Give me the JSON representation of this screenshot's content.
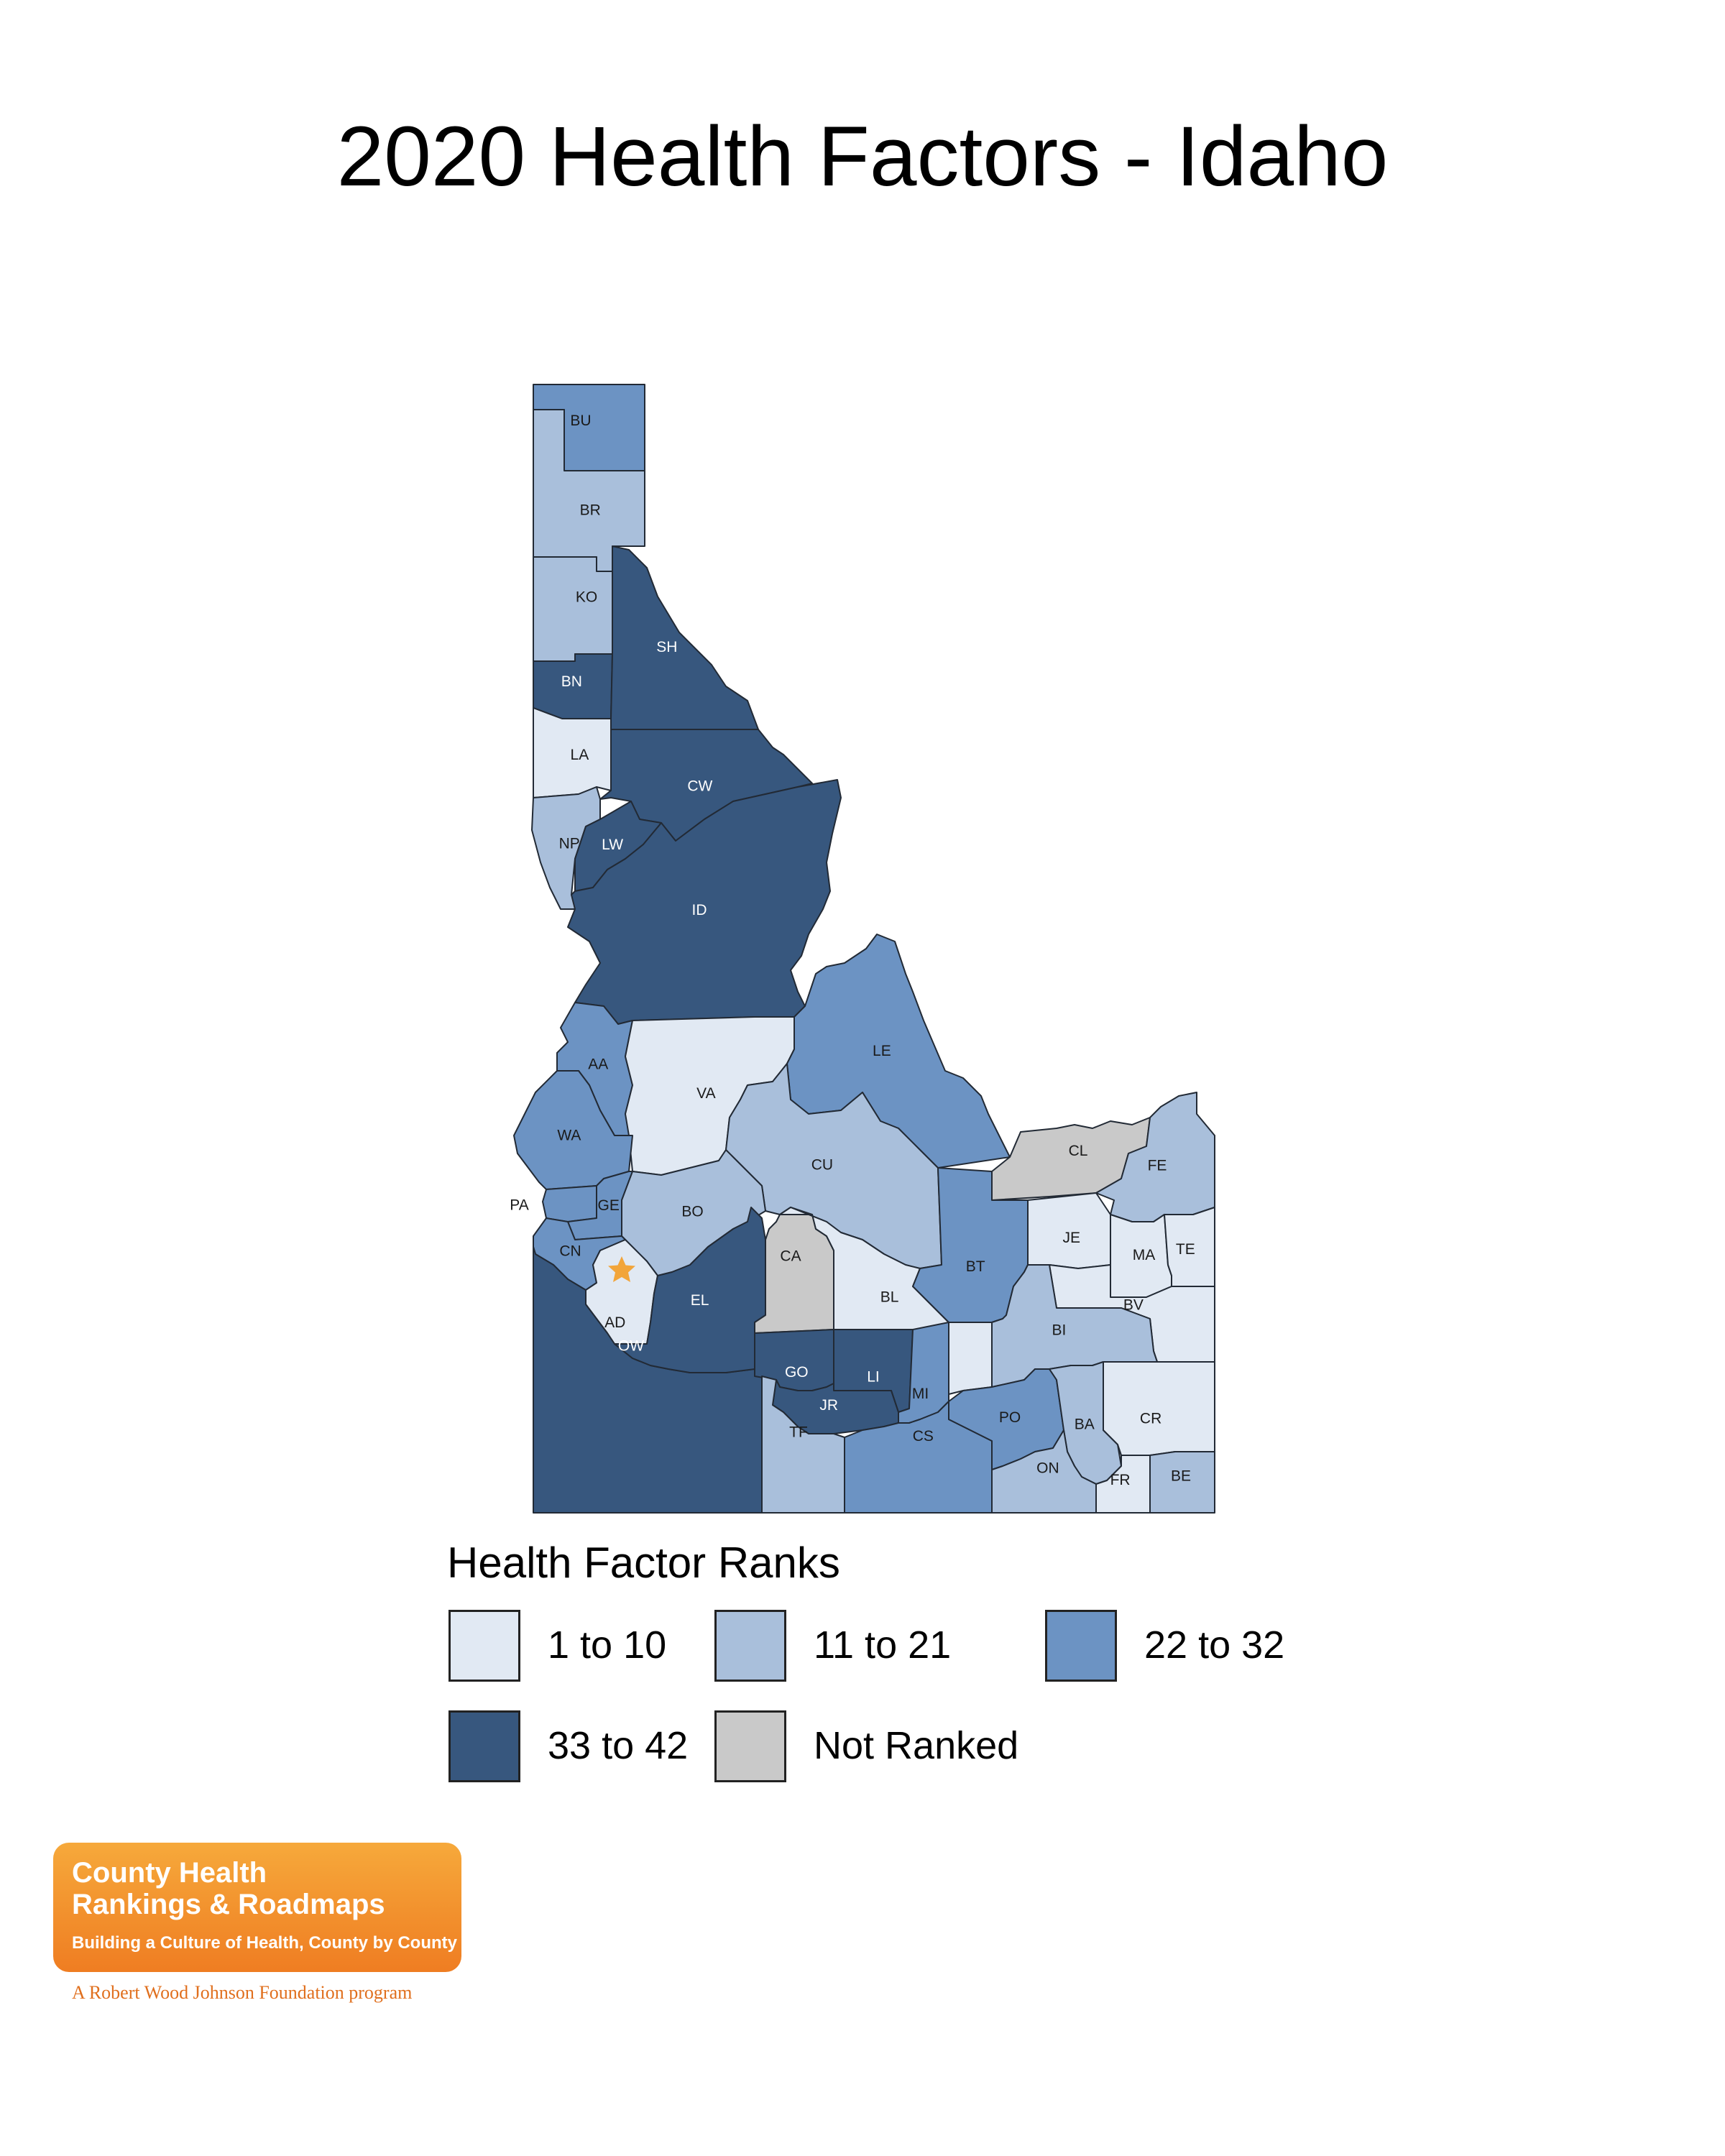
{
  "title": "2020 Health Factors - Idaho",
  "legend": {
    "title": "Health Factor Ranks",
    "items": [
      {
        "key": "r1",
        "label": "1 to 10",
        "color": "#e1e9f3"
      },
      {
        "key": "r2",
        "label": "11 to 21",
        "color": "#a9bfdb"
      },
      {
        "key": "r3",
        "label": "22 to 32",
        "color": "#6c93c3"
      },
      {
        "key": "r4",
        "label": "33 to 42",
        "color": "#37577e"
      },
      {
        "key": "nr",
        "label": "Not Ranked",
        "color": "#c9c9c9"
      }
    ]
  },
  "counties": [
    {
      "code": "BU",
      "rank": "r3"
    },
    {
      "code": "BR",
      "rank": "r2"
    },
    {
      "code": "KO",
      "rank": "r2"
    },
    {
      "code": "BN",
      "rank": "r4"
    },
    {
      "code": "SH",
      "rank": "r4"
    },
    {
      "code": "LA",
      "rank": "r1"
    },
    {
      "code": "CW",
      "rank": "r4"
    },
    {
      "code": "NP",
      "rank": "r2"
    },
    {
      "code": "LW",
      "rank": "r4"
    },
    {
      "code": "ID",
      "rank": "r4"
    },
    {
      "code": "AA",
      "rank": "r3"
    },
    {
      "code": "VA",
      "rank": "r1"
    },
    {
      "code": "LE",
      "rank": "r3"
    },
    {
      "code": "WA",
      "rank": "r3"
    },
    {
      "code": "CU",
      "rank": "r2"
    },
    {
      "code": "CL",
      "rank": "nr"
    },
    {
      "code": "FE",
      "rank": "r2"
    },
    {
      "code": "PA",
      "rank": "r3"
    },
    {
      "code": "GE",
      "rank": "r3"
    },
    {
      "code": "BO",
      "rank": "r2"
    },
    {
      "code": "CN",
      "rank": "r3"
    },
    {
      "code": "AD",
      "rank": "r1"
    },
    {
      "code": "EL",
      "rank": "r4"
    },
    {
      "code": "CA",
      "rank": "nr"
    },
    {
      "code": "BL",
      "rank": "r1"
    },
    {
      "code": "BT",
      "rank": "r3"
    },
    {
      "code": "JE",
      "rank": "r1"
    },
    {
      "code": "MA",
      "rank": "r1"
    },
    {
      "code": "TE",
      "rank": "r1"
    },
    {
      "code": "BV",
      "rank": "r1"
    },
    {
      "code": "BI",
      "rank": "r2"
    },
    {
      "code": "OW",
      "rank": "r4"
    },
    {
      "code": "GO",
      "rank": "r4"
    },
    {
      "code": "LI",
      "rank": "r4"
    },
    {
      "code": "MI",
      "rank": "r3"
    },
    {
      "code": "JR",
      "rank": "r4"
    },
    {
      "code": "PO",
      "rank": "r3"
    },
    {
      "code": "BA",
      "rank": "r2"
    },
    {
      "code": "CR",
      "rank": "r1"
    },
    {
      "code": "TF",
      "rank": "r2"
    },
    {
      "code": "CS",
      "rank": "r3"
    },
    {
      "code": "ON",
      "rank": "r2"
    },
    {
      "code": "FR",
      "rank": "r1"
    },
    {
      "code": "BE",
      "rank": "r2"
    }
  ],
  "capital_marker": {
    "county": "AD",
    "icon": "star-icon",
    "color": "#f2a53a"
  },
  "logo": {
    "line1": "County Health",
    "line2": "Rankings & Roadmaps",
    "tagline": "Building a Culture of Health, County by County",
    "sub": "A Robert Wood Johnson Foundation program"
  }
}
